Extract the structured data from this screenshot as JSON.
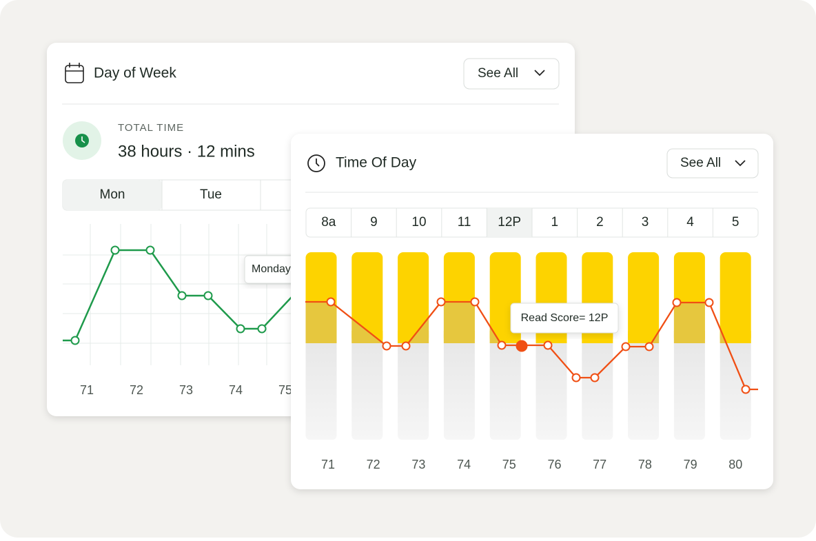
{
  "day_of_week": {
    "title": "Day of Week",
    "button": "See All",
    "total_label": "TOTAL TIME",
    "total_value": "38 hours · 12 mins",
    "tabs": [
      "Mon",
      "Tue"
    ],
    "tooltip": "Monday",
    "x_labels": [
      "71",
      "72",
      "73",
      "74",
      "75"
    ]
  },
  "time_of_day": {
    "title": "Time Of Day",
    "button": "See All",
    "hours": [
      "8a",
      "9",
      "10",
      "11",
      "12P",
      "1",
      "2",
      "3",
      "4",
      "5"
    ],
    "tooltip": "Read Score= 12P",
    "x_labels": [
      "71",
      "72",
      "73",
      "74",
      "75",
      "76",
      "77",
      "78",
      "79",
      "80"
    ]
  }
}
